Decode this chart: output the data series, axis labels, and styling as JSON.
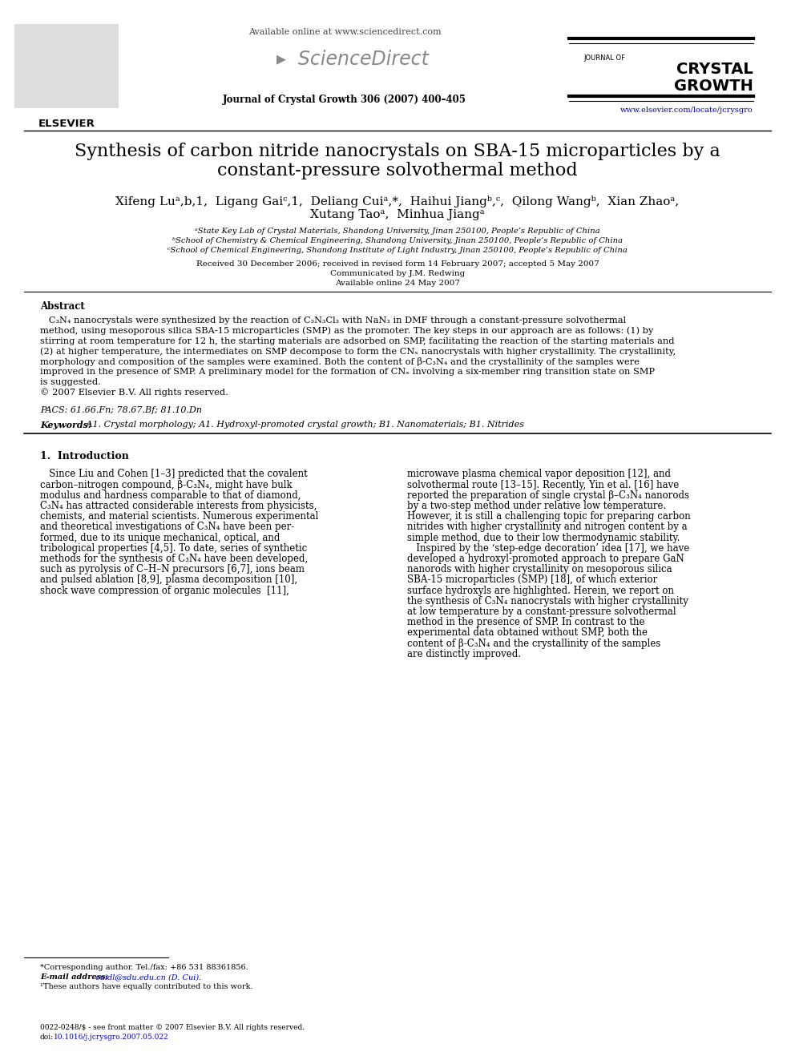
{
  "bg_color": "#ffffff",
  "title_line1": "Synthesis of carbon nitride nanocrystals on SBA-15 microparticles by a",
  "title_line2": "constant-pressure solvothermal method",
  "authors_line1": "Xifeng Luᵃ,b,1,  Ligang Gaiᶜ,1,  Deliang Cuiᵃ,*,  Haihui Jiangᵇ,ᶜ,  Qilong Wangᵇ,  Xian Zhaoᵃ,",
  "authors_line2": "Xutang Taoᵃ,  Minhua Jiangᵃ",
  "affil_a": "ᵃState Key Lab of Crystal Materials, Shandong University, Jinan 250100, People’s Republic of China",
  "affil_b": "ᵇSchool of Chemistry & Chemical Engineering, Shandong University, Jinan 250100, People’s Republic of China",
  "affil_c": "ᶜSchool of Chemical Engineering, Shandong Institute of Light Industry, Jinan 250100, People’s Republic of China",
  "date1": "Received 30 December 2006; received in revised form 14 February 2007; accepted 5 May 2007",
  "date2": "Communicated by J.M. Redwing",
  "date3": "Available online 24 May 2007",
  "journal_header": "Journal of Crystal Growth 306 (2007) 400–405",
  "available_online": "Available online at www.sciencedirect.com",
  "website": "www.elsevier.com/locate/jcrysgro",
  "elsevier_text": "ELSEVIER",
  "abstract_title": "Abstract",
  "abstract_lines": [
    "   C₃N₄ nanocrystals were synthesized by the reaction of C₃N₃Cl₃ with NaN₃ in DMF through a constant-pressure solvothermal",
    "method, using mesoporous silica SBA-15 microparticles (SMP) as the promoter. The key steps in our approach are as follows: (1) by",
    "stirring at room temperature for 12 h, the starting materials are adsorbed on SMP, facilitating the reaction of the starting materials and",
    "(2) at higher temperature, the intermediates on SMP decompose to form the CNₓ nanocrystals with higher crystallinity. The crystallinity,",
    "morphology and composition of the samples were examined. Both the content of β-C₃N₄ and the crystallinity of the samples were",
    "improved in the presence of SMP. A preliminary model for the formation of CNₓ involving a six-member ring transition state on SMP",
    "is suggested.",
    "© 2007 Elsevier B.V. All rights reserved."
  ],
  "pacs": "PACS: 61.66.Fn; 78.67.Bf; 81.10.Dn",
  "keywords_bold": "Keywords:",
  "keywords_rest": " A1. Crystal morphology; A1. Hydroxyl-promoted crystal growth; B1. Nanomaterials; B1. Nitrides",
  "section1_title": "1.  Introduction",
  "col1_lines": [
    "   Since Liu and Cohen [1–3] predicted that the covalent",
    "carbon–nitrogen compound, β-C₃N₄, might have bulk",
    "modulus and hardness comparable to that of diamond,",
    "C₃N₄ has attracted considerable interests from physicists,",
    "chemists, and material scientists. Numerous experimental",
    "and theoretical investigations of C₃N₄ have been per-",
    "formed, due to its unique mechanical, optical, and",
    "tribological properties [4,5]. To date, series of synthetic",
    "methods for the synthesis of C₃N₄ have been developed,",
    "such as pyrolysis of C–H–N precursors [6,7], ions beam",
    "and pulsed ablation [8,9], plasma decomposition [10],",
    "shock wave compression of organic molecules  [11],"
  ],
  "col2_lines": [
    "microwave plasma chemical vapor deposition [12], and",
    "solvothermal route [13–15]. Recently, Yin et al. [16] have",
    "reported the preparation of single crystal β–C₃N₄ nanorods",
    "by a two-step method under relative low temperature.",
    "However, it is still a challenging topic for preparing carbon",
    "nitrides with higher crystallinity and nitrogen content by a",
    "simple method, due to their low thermodynamic stability.",
    "   Inspired by the ‘step-edge decoration’ idea [17], we have",
    "developed a hydroxyl-promoted approach to prepare GaN",
    "nanorods with higher crystallinity on mesoporous silica",
    "SBA-15 microparticles (SMP) [18], of which exterior",
    "surface hydroxyls are highlighted. Herein, we report on",
    "the synthesis of C₃N₄ nanocrystals with higher crystallinity",
    "at low temperature by a constant-pressure solvothermal",
    "method in the presence of SMP. In contrast to the",
    "experimental data obtained without SMP, both the",
    "content of β-C₃N₄ and the crystallinity of the samples",
    "are distinctly improved."
  ],
  "footnote1": "*Corresponding author. Tel./fax: +86 531 88361856.",
  "footnote2_bold": "E-mail address:",
  "footnote2_blue": " cuidl@sdu.edu.cn (D. Cui).",
  "footnote3": "¹These authors have equally contributed to this work.",
  "footer1": "0022-0248/$ - see front matter © 2007 Elsevier B.V. All rights reserved.",
  "footer2_black": "doi:",
  "footer2_blue": "10.1016/j.jcrysgro.2007.05.022"
}
